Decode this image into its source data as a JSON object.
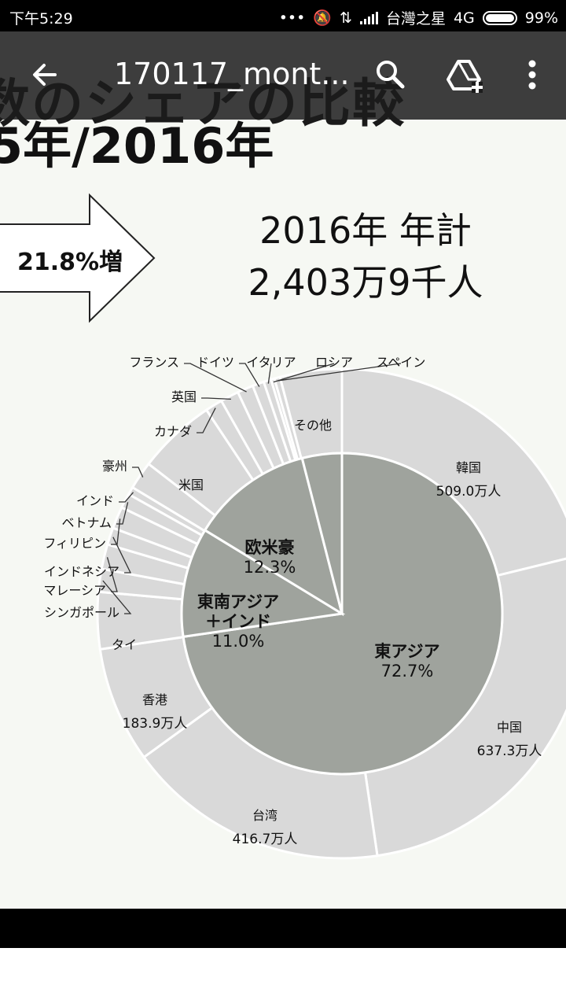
{
  "status_bar": {
    "time": "下午5:29",
    "carrier": "台灣之星",
    "network": "4G",
    "battery": "99%"
  },
  "app_bar": {
    "title": "170117_mont...",
    "icons": [
      "back-arrow-icon",
      "search-icon",
      "drive-add-icon",
      "more-vert-icon"
    ]
  },
  "document": {
    "heading_line1": "数のシェアの比較",
    "heading_line2": "5年/2016年",
    "increase": "21.8%増",
    "total_line1": "2016年 年計",
    "total_line2": "2,403万9千人"
  },
  "chart_data": {
    "type": "pie",
    "inner": [
      {
        "name": "東アジア",
        "share": 72.7,
        "label": "72.7%"
      },
      {
        "name": "東南アジア\n＋インド",
        "share": 11.0,
        "label": "11.0%"
      },
      {
        "name": "欧米豪",
        "share": 12.3,
        "label": "12.3%"
      },
      {
        "name": "その他",
        "share": 4.0,
        "label": ""
      }
    ],
    "outer": [
      {
        "name": "韓国",
        "value": 509.0,
        "label": "509.0万人"
      },
      {
        "name": "中国",
        "value": 637.3,
        "label": "637.3万人"
      },
      {
        "name": "台湾",
        "value": 416.7,
        "label": "416.7万人"
      },
      {
        "name": "香港",
        "value": 183.9,
        "label": "183.9万人"
      },
      {
        "name": "タイ",
        "value": 90.2
      },
      {
        "name": "シンガポール",
        "value": 36.2
      },
      {
        "name": "マレーシア",
        "value": 39.4
      },
      {
        "name": "インドネシア",
        "value": 27.1
      },
      {
        "name": "フィリピン",
        "value": 34.8
      },
      {
        "name": "ベトナム",
        "value": 23.4
      },
      {
        "name": "インド",
        "value": 12.3
      },
      {
        "name": "豪州",
        "value": 44.5
      },
      {
        "name": "米国",
        "value": 124.3
      },
      {
        "name": "カナダ",
        "value": 27.3
      },
      {
        "name": "英国",
        "value": 29.2
      },
      {
        "name": "フランス",
        "value": 25.3
      },
      {
        "name": "ドイツ",
        "value": 18.3
      },
      {
        "name": "イタリア",
        "value": 11.9
      },
      {
        "name": "ロシア",
        "value": 5.5
      },
      {
        "name": "スペイン",
        "value": 9.1
      },
      {
        "name": "その他",
        "value": 98.1
      }
    ]
  },
  "colors": {
    "inner": "#9fa39d",
    "outer": "#d9d9d9",
    "divider": "#ffffff",
    "page_bg": "#f6f8f3"
  }
}
